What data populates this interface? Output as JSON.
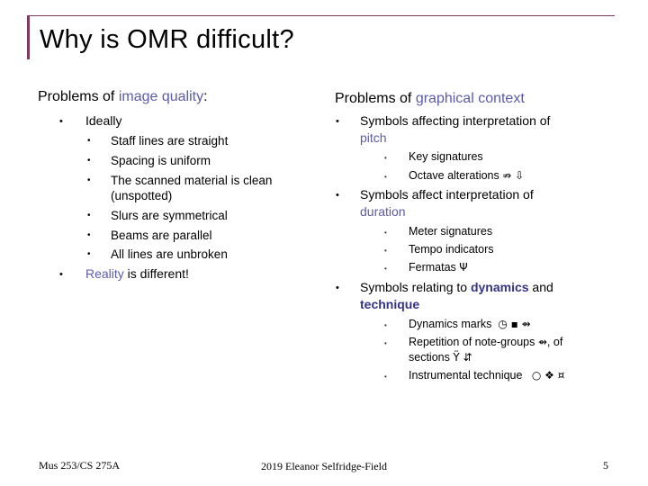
{
  "title": "Why is OMR difficult?",
  "left": {
    "heading_prefix": "Problems of ",
    "heading_highlight": "image quality",
    "heading_suffix": ":",
    "ideally": "Ideally",
    "sub_items": [
      "Staff lines are straight",
      "Spacing is uniform",
      "The scanned material is clean",
      "(unspotted)",
      "Slurs are symmetrical",
      "Beams are parallel",
      "All lines are unbroken"
    ],
    "reality_highlight": "Reality",
    "reality_rest": " is different!"
  },
  "right": {
    "heading_prefix": "Problems of ",
    "heading_highlight": "graphical context",
    "pitch_line1": "Symbols affecting interpretation of",
    "pitch_line2": "pitch",
    "pitch_items": [
      "Key signatures",
      "Octave alterations"
    ],
    "pitch_symbols": "⇏ ⇩",
    "duration_line1": "Symbols affect interpretation of",
    "duration_line2": "duration",
    "duration_items": [
      "Meter signatures",
      "Tempo indicators",
      "Fermatas"
    ],
    "fermata_symbol": "Ψ",
    "dyn_prefix": "Symbols relating to ",
    "dyn_highlight1": "dynamics",
    "dyn_mid": " and",
    "dyn_highlight2": "technique",
    "dynamics_marks": "Dynamics marks",
    "dynamics_symbols": "◷ ▪ ⇴",
    "repetition": "Repetition of note-groups",
    "repetition_sym": "⇴",
    "repetition_tail": ", of",
    "sections": "sections",
    "sections_symbols": "Ÿ ⇵",
    "instrumental": "Instrumental technique",
    "instrumental_symbols": "○ ❖ ¤"
  },
  "footer": {
    "course": "Mus 253/CS 275A",
    "credit": "2019 Eleanor Selfridge-Field",
    "page": "5"
  }
}
